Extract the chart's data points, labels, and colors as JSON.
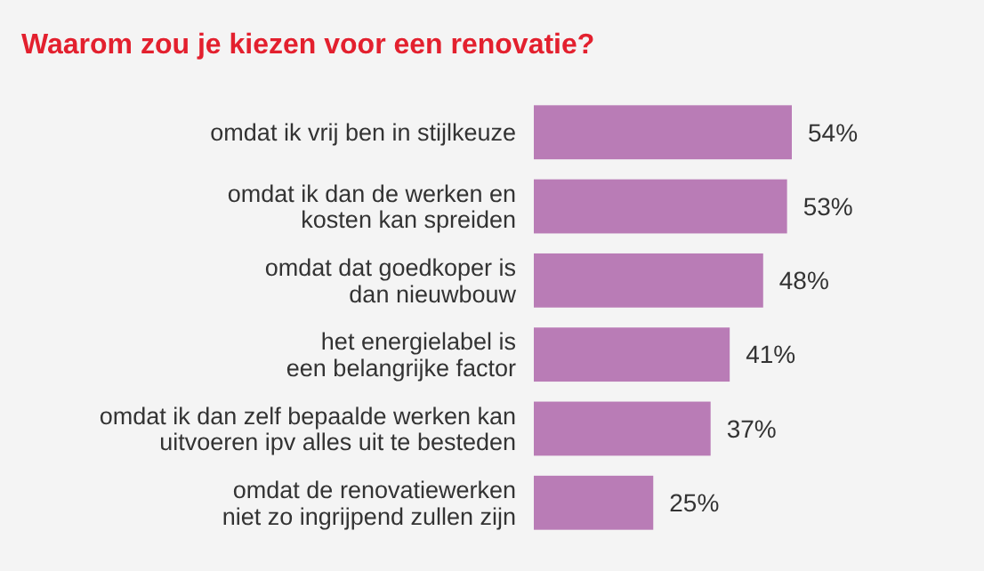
{
  "chart_data": {
    "type": "bar",
    "orientation": "horizontal",
    "title": "Waarom zou je kiezen voor een renovatie?",
    "categories": [
      "omdat ik vrij ben in stijlkeuze",
      "omdat ik dan de werken en\nkosten kan spreiden",
      "omdat dat goedkoper is\ndan nieuwbouw",
      "het energielabel is\neen belangrijke factor",
      "omdat ik dan zelf bepaalde werken kan\nuitvoeren ipv alles uit te besteden",
      "omdat de renovatiewerken\nniet zo ingrijpend zullen zijn"
    ],
    "values": [
      54,
      53,
      48,
      41,
      37,
      25
    ],
    "value_labels": [
      "54%",
      "53%",
      "48%",
      "41%",
      "37%",
      "25%"
    ],
    "color": "#b97cb6"
  }
}
